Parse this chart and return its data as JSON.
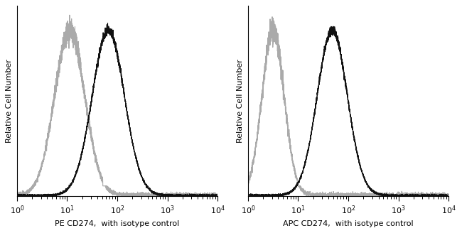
{
  "panel1_xlabel": "PE CD274,  with isotype control",
  "panel2_xlabel": "APC CD274,  with isotype control",
  "ylabel": "Relative Cell Number",
  "background_color": "#ffffff",
  "plot1": {
    "isotype_peak_log": 1.05,
    "isotype_sigma_log": 0.3,
    "sample_peak_log": 1.82,
    "sample_sigma_log": 0.32
  },
  "plot2": {
    "isotype_peak_log": 0.5,
    "isotype_sigma_log": 0.22,
    "sample_peak_log": 1.68,
    "sample_sigma_log": 0.3
  },
  "isotype_color": "#aaaaaa",
  "sample_color": "#111111",
  "line_width": 0.8,
  "noise_scale_iso": 0.035,
  "noise_scale_sam": 0.015,
  "baseline_level": 0.018
}
